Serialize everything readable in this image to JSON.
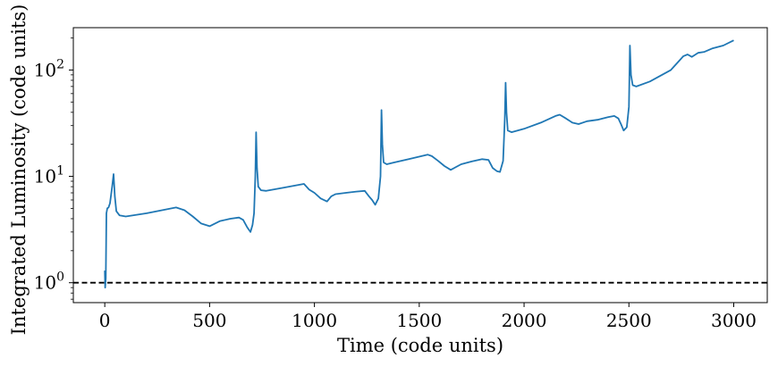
{
  "chart_data": {
    "type": "line",
    "title": "",
    "xlabel": "Time (code units)",
    "ylabel": "Integrated Luminosity (code units)",
    "xlim": [
      -150,
      3160
    ],
    "ylim": [
      0.65,
      250
    ],
    "y_scale": "log",
    "grid": false,
    "x_ticks": [
      {
        "value": 0,
        "label": "0"
      },
      {
        "value": 500,
        "label": "500"
      },
      {
        "value": 1000,
        "label": "1000"
      },
      {
        "value": 1500,
        "label": "1500"
      },
      {
        "value": 2000,
        "label": "2000"
      },
      {
        "value": 2500,
        "label": "2500"
      },
      {
        "value": 3000,
        "label": "3000"
      }
    ],
    "y_ticks": [
      {
        "value": 1,
        "base": "10",
        "exp": "0"
      },
      {
        "value": 10,
        "base": "10",
        "exp": "1"
      },
      {
        "value": 100,
        "base": "10",
        "exp": "2"
      }
    ],
    "reference_line": {
      "y": 1,
      "style": "dashed",
      "color": "#000000"
    },
    "series": [
      {
        "color": "#1f77b4",
        "x": [
          0,
          2,
          5,
          8,
          12,
          18,
          25,
          35,
          42,
          48,
          55,
          70,
          100,
          200,
          340,
          380,
          420,
          460,
          500,
          550,
          600,
          640,
          660,
          680,
          695,
          705,
          712,
          718,
          722,
          726,
          732,
          745,
          770,
          850,
          950,
          975,
          1000,
          1030,
          1060,
          1080,
          1100,
          1150,
          1200,
          1240,
          1260,
          1275,
          1290,
          1305,
          1315,
          1320,
          1324,
          1330,
          1345,
          1380,
          1450,
          1540,
          1560,
          1590,
          1620,
          1650,
          1700,
          1750,
          1800,
          1830,
          1850,
          1870,
          1885,
          1900,
          1908,
          1912,
          1916,
          1922,
          1940,
          2000,
          2080,
          2150,
          2170,
          2200,
          2230,
          2260,
          2300,
          2350,
          2400,
          2430,
          2450,
          2462,
          2475,
          2490,
          2500,
          2505,
          2510,
          2518,
          2535,
          2600,
          2700,
          2760,
          2780,
          2800,
          2830,
          2860,
          2900,
          2950,
          3000
        ],
        "y": [
          1.3,
          0.9,
          1.1,
          4.5,
          5.0,
          5.1,
          5.6,
          8.0,
          10.5,
          6.5,
          4.7,
          4.3,
          4.2,
          4.5,
          5.1,
          4.8,
          4.2,
          3.6,
          3.4,
          3.8,
          4.0,
          4.1,
          3.9,
          3.3,
          3.0,
          3.5,
          4.5,
          10,
          26,
          12,
          8.0,
          7.4,
          7.3,
          7.8,
          8.5,
          7.5,
          7.0,
          6.2,
          5.8,
          6.5,
          6.8,
          7.0,
          7.2,
          7.3,
          6.5,
          6.0,
          5.4,
          6.2,
          10,
          42,
          20,
          13.5,
          13.0,
          13.5,
          14.5,
          16,
          15.5,
          14,
          12.5,
          11.5,
          13,
          13.8,
          14.5,
          14.3,
          12,
          11.2,
          11,
          14,
          35,
          76,
          40,
          27,
          26,
          28,
          32,
          37,
          38,
          35,
          32,
          31,
          33,
          34,
          36,
          37,
          35,
          31,
          27,
          29,
          45,
          170,
          90,
          72,
          70,
          78,
          100,
          135,
          140,
          133,
          145,
          148,
          160,
          170,
          190
        ]
      }
    ]
  }
}
